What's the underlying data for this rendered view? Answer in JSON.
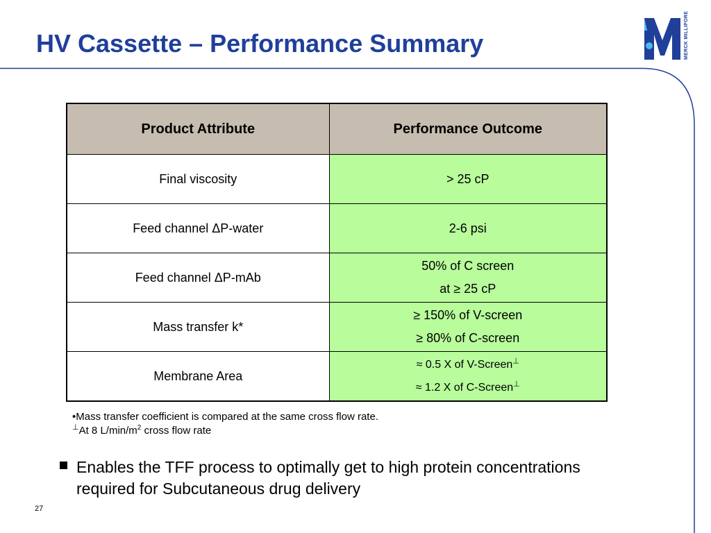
{
  "slide": {
    "title": "HV Cassette – Performance Summary",
    "page_number": "27",
    "brand_color": "#1f3f9a"
  },
  "logo": {
    "icon": "merck-millipore-m-logo-icon",
    "vertical_text": "MERCK MILLIPORE"
  },
  "table": {
    "headers": [
      "Product Attribute",
      "Performance Outcome"
    ],
    "header_color": "#c6bcb0",
    "outcome_color": "#b8fc9c",
    "rows": [
      {
        "attribute": "Final viscosity",
        "outcome_line1": "> 25 cP",
        "outcome_line2": ""
      },
      {
        "attribute": "Feed channel ΔP-water",
        "outcome_line1": "2-6 psi",
        "outcome_line2": ""
      },
      {
        "attribute": "Feed channel ΔP-mAb",
        "outcome_line1": "50% of C screen",
        "outcome_line2": "at ≥ 25 cP"
      },
      {
        "attribute": "Mass transfer k*",
        "outcome_line1": "≥ 150% of V-screen",
        "outcome_line2": "≥ 80% of C-screen"
      },
      {
        "attribute": "Membrane Area",
        "outcome_line1": "≈ 0.5 X of V-Screen",
        "outcome_line2": "≈ 1.2 X of C-Screen",
        "outcome_mark": "⊥"
      }
    ]
  },
  "notes": {
    "line1": "•Mass transfer coefficient is compared at the same cross flow rate.",
    "line2_mark": "⊥",
    "line2_pre": "At 8 L/min/m",
    "line2_sup": "2",
    "line2_post": " cross flow rate"
  },
  "bullet": {
    "line1": "Enables the TFF process to optimally get to high protein concentrations",
    "line2": "required for Subcutaneous drug delivery"
  }
}
